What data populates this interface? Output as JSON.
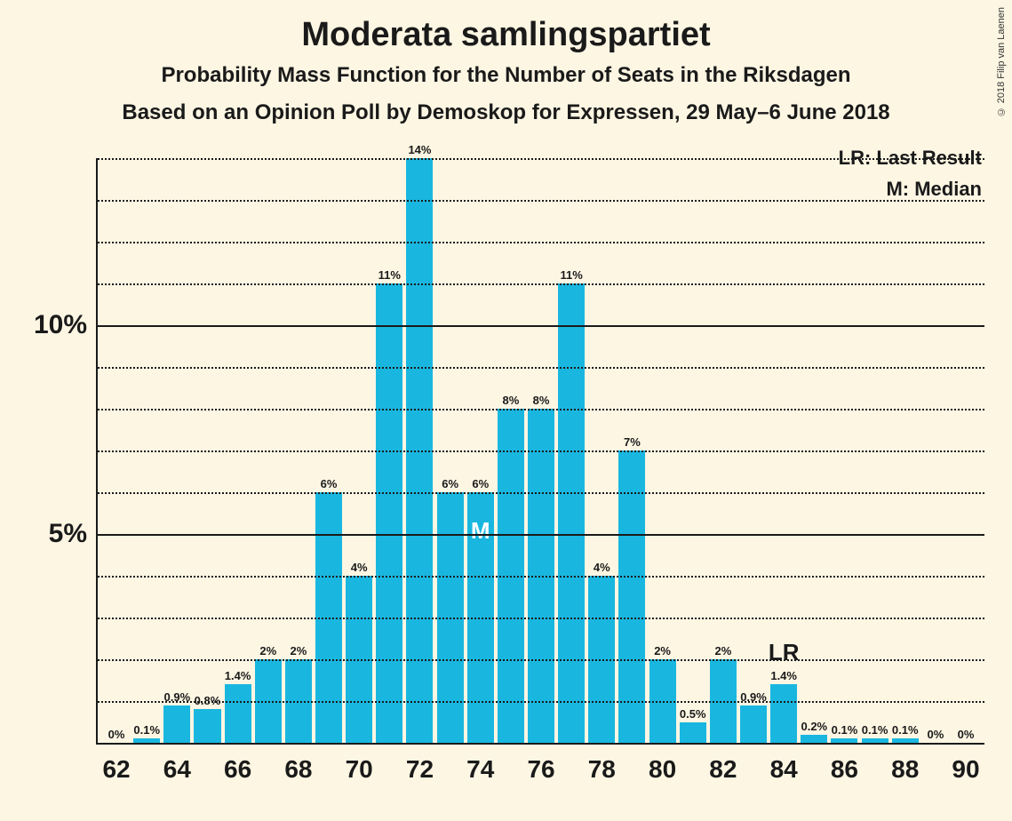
{
  "title": "Moderata samlingspartiet",
  "subtitle": "Probability Mass Function for the Number of Seats in the Riksdagen",
  "source_line": "Based on an Opinion Poll by Demoskop for Expressen, 29 May–6 June 2018",
  "legend": {
    "lr": "LR: Last Result",
    "m": "M: Median"
  },
  "copyright": "© 2018 Filip van Laenen",
  "chart": {
    "type": "bar",
    "bar_color": "#19b7e0",
    "background_color": "#fdf6e3",
    "axis_color": "#1a1a1a",
    "grid_major_color": "#1a1a1a",
    "grid_minor_color": "#1a1a1a",
    "y_axis": {
      "min": 0,
      "max": 14,
      "major_ticks": [
        5,
        10
      ],
      "major_labels": [
        "5%",
        "10%"
      ],
      "minor_step": 1,
      "label_fontsize": 30
    },
    "x_axis": {
      "start": 62,
      "end": 90,
      "tick_step": 2,
      "ticks": [
        62,
        64,
        66,
        68,
        70,
        72,
        74,
        76,
        78,
        80,
        82,
        84,
        86,
        88,
        90
      ],
      "label_fontsize": 28
    },
    "bars": [
      {
        "x": 62,
        "value": 0,
        "label": "0%"
      },
      {
        "x": 63,
        "value": 0.1,
        "label": "0.1%"
      },
      {
        "x": 64,
        "value": 0.9,
        "label": "0.9%"
      },
      {
        "x": 65,
        "value": 0.8,
        "label": "0.8%"
      },
      {
        "x": 66,
        "value": 1.4,
        "label": "1.4%"
      },
      {
        "x": 67,
        "value": 2,
        "label": "2%"
      },
      {
        "x": 68,
        "value": 2,
        "label": "2%"
      },
      {
        "x": 69,
        "value": 6,
        "label": "6%"
      },
      {
        "x": 70,
        "value": 4,
        "label": "4%"
      },
      {
        "x": 71,
        "value": 11,
        "label": "11%"
      },
      {
        "x": 72,
        "value": 14,
        "label": "14%"
      },
      {
        "x": 73,
        "value": 6,
        "label": "6%"
      },
      {
        "x": 74,
        "value": 6,
        "label": "6%",
        "annotation": "M",
        "annotation_pos": "inside"
      },
      {
        "x": 75,
        "value": 8,
        "label": "8%"
      },
      {
        "x": 76,
        "value": 8,
        "label": "8%"
      },
      {
        "x": 77,
        "value": 11,
        "label": "11%"
      },
      {
        "x": 78,
        "value": 4,
        "label": "4%"
      },
      {
        "x": 79,
        "value": 7,
        "label": "7%"
      },
      {
        "x": 80,
        "value": 2,
        "label": "2%"
      },
      {
        "x": 81,
        "value": 0.5,
        "label": "0.5%"
      },
      {
        "x": 82,
        "value": 2,
        "label": "2%"
      },
      {
        "x": 83,
        "value": 0.9,
        "label": "0.9%"
      },
      {
        "x": 84,
        "value": 1.4,
        "label": "1.4%",
        "annotation": "LR",
        "annotation_pos": "outside"
      },
      {
        "x": 85,
        "value": 0.2,
        "label": "0.2%"
      },
      {
        "x": 86,
        "value": 0.1,
        "label": "0.1%"
      },
      {
        "x": 87,
        "value": 0.1,
        "label": "0.1%"
      },
      {
        "x": 88,
        "value": 0.1,
        "label": "0.1%"
      },
      {
        "x": 89,
        "value": 0,
        "label": "0%"
      },
      {
        "x": 90,
        "value": 0,
        "label": "0%"
      }
    ],
    "title_fontsize": 38,
    "subtitle_fontsize": 24,
    "bar_width_ratio": 0.88
  }
}
